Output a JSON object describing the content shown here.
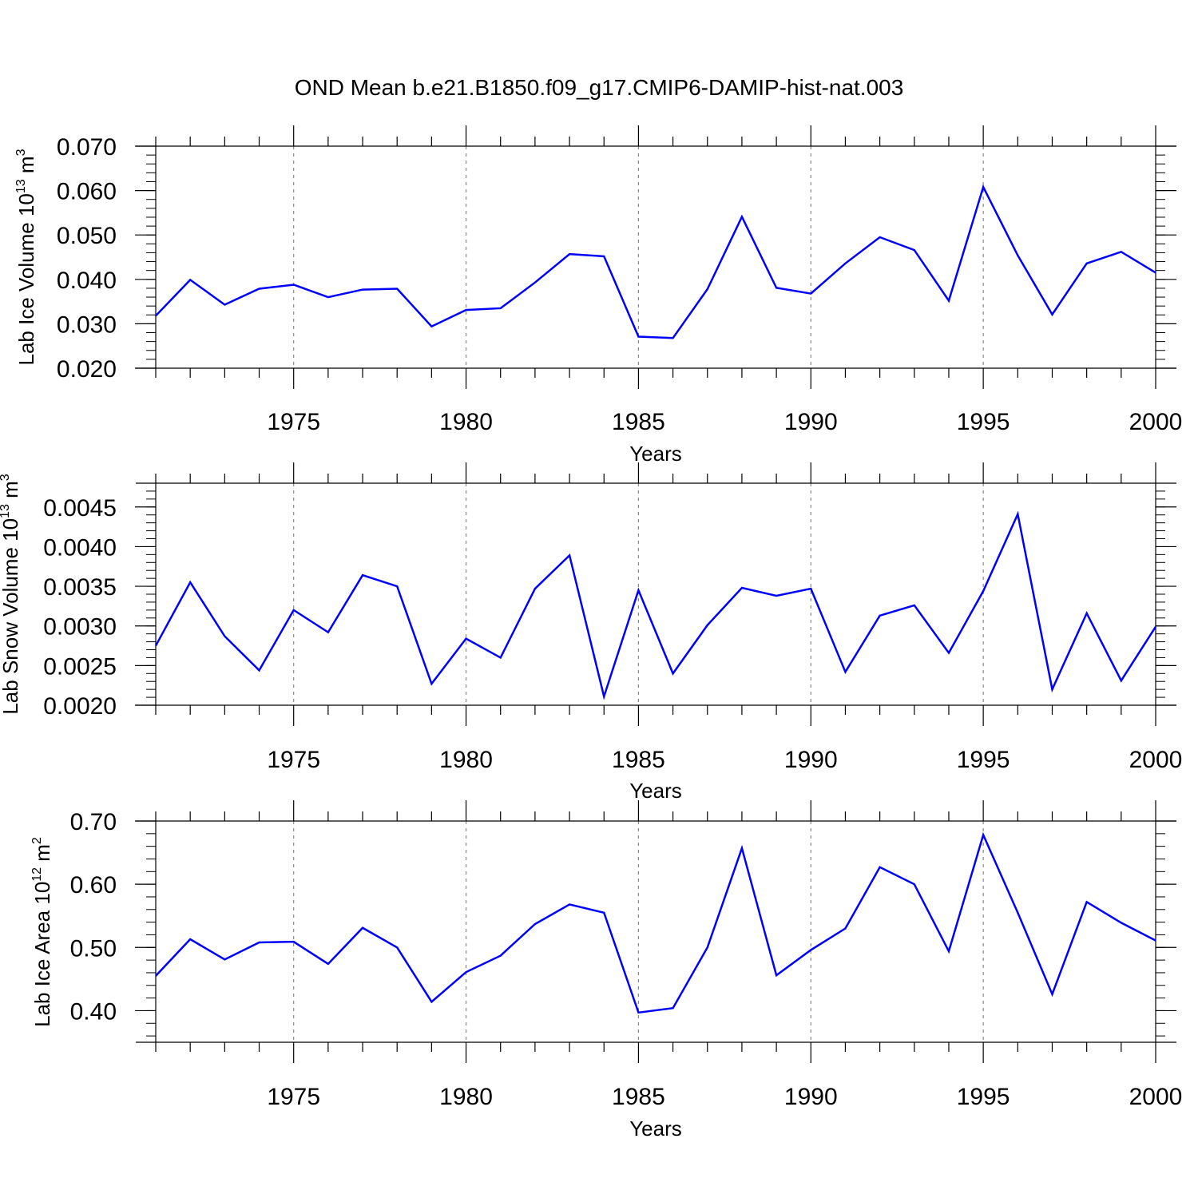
{
  "title": "OND Mean b.e21.B1850.f09_g17.CMIP6-DAMIP-hist-nat.003",
  "colors": {
    "series": "#0000ff",
    "axis": "#000000",
    "grid": "#888888"
  },
  "chart_data": [
    {
      "type": "line",
      "ylabel": "Lab Ice Volume 10",
      "ylabel_exp": "13",
      "ylabel_unit": " m",
      "ylabel_unit_exp": "3",
      "xlabel": "Years",
      "xlim": [
        1971,
        2000
      ],
      "ylim": [
        0.02,
        0.07
      ],
      "yticks": [
        "0.020",
        "0.030",
        "0.040",
        "0.050",
        "0.060",
        "0.070"
      ],
      "ytick_values": [
        0.02,
        0.03,
        0.04,
        0.05,
        0.06,
        0.07
      ],
      "xticks": [
        "1975",
        "1980",
        "1985",
        "1990",
        "1995",
        "2000"
      ],
      "xtick_values": [
        1975,
        1980,
        1985,
        1990,
        1995,
        2000
      ],
      "grid": "vertical dashed at major x ticks",
      "x": [
        1971,
        1972,
        1973,
        1974,
        1975,
        1976,
        1977,
        1978,
        1979,
        1980,
        1981,
        1982,
        1983,
        1984,
        1985,
        1986,
        1987,
        1988,
        1989,
        1990,
        1991,
        1992,
        1993,
        1994,
        1995,
        1996,
        1997,
        1998,
        1999,
        2000
      ],
      "series": [
        {
          "values": [
            0.0318,
            0.0399,
            0.0343,
            0.0379,
            0.0388,
            0.036,
            0.0377,
            0.0379,
            0.0294,
            0.0331,
            0.0335,
            0.0393,
            0.0457,
            0.0452,
            0.0271,
            0.0268,
            0.0378,
            0.0541,
            0.0381,
            0.0368,
            0.0436,
            0.0495,
            0.0466,
            0.0352,
            0.0608,
            0.0454,
            0.0321,
            0.0436,
            0.0462,
            0.0415
          ]
        }
      ]
    },
    {
      "type": "line",
      "ylabel": "Lab Snow Volume 10",
      "ylabel_exp": "13",
      "ylabel_unit": " m",
      "ylabel_unit_exp": "3",
      "xlabel": "Years",
      "xlim": [
        1971,
        2000
      ],
      "ylim": [
        0.002,
        0.0048
      ],
      "yticks": [
        "0.0020",
        "0.0025",
        "0.0030",
        "0.0035",
        "0.0040",
        "0.0045"
      ],
      "ytick_values": [
        0.002,
        0.0025,
        0.003,
        0.0035,
        0.004,
        0.0045
      ],
      "xticks": [
        "1975",
        "1980",
        "1985",
        "1990",
        "1995",
        "2000"
      ],
      "xtick_values": [
        1975,
        1980,
        1985,
        1990,
        1995,
        2000
      ],
      "grid": "vertical dashed at major x ticks",
      "x": [
        1971,
        1972,
        1973,
        1974,
        1975,
        1976,
        1977,
        1978,
        1979,
        1980,
        1981,
        1982,
        1983,
        1984,
        1985,
        1986,
        1987,
        1988,
        1989,
        1990,
        1991,
        1992,
        1993,
        1994,
        1995,
        1996,
        1997,
        1998,
        1999,
        2000
      ],
      "series": [
        {
          "values": [
            0.00275,
            0.00355,
            0.00287,
            0.00244,
            0.0032,
            0.00292,
            0.00364,
            0.0035,
            0.00227,
            0.00284,
            0.0026,
            0.00347,
            0.00389,
            0.00211,
            0.00345,
            0.0024,
            0.00301,
            0.00348,
            0.00338,
            0.00347,
            0.00242,
            0.00313,
            0.00326,
            0.00266,
            0.00344,
            0.00441,
            0.0022,
            0.00316,
            0.00231,
            0.00299
          ]
        }
      ]
    },
    {
      "type": "line",
      "ylabel": "Lab Ice Area 10",
      "ylabel_exp": "12",
      "ylabel_unit": " m",
      "ylabel_unit_exp": "2",
      "xlabel": "Years",
      "xlim": [
        1971,
        2000
      ],
      "ylim": [
        0.35,
        0.7
      ],
      "yticks": [
        "0.40",
        "0.50",
        "0.60",
        "0.70"
      ],
      "ytick_values": [
        0.4,
        0.5,
        0.6,
        0.7
      ],
      "xticks": [
        "1975",
        "1980",
        "1985",
        "1990",
        "1995",
        "2000"
      ],
      "xtick_values": [
        1975,
        1980,
        1985,
        1990,
        1995,
        2000
      ],
      "grid": "vertical dashed at major x ticks",
      "x": [
        1971,
        1972,
        1973,
        1974,
        1975,
        1976,
        1977,
        1978,
        1979,
        1980,
        1981,
        1982,
        1983,
        1984,
        1985,
        1986,
        1987,
        1988,
        1989,
        1990,
        1991,
        1992,
        1993,
        1994,
        1995,
        1996,
        1997,
        1998,
        1999,
        2000
      ],
      "series": [
        {
          "values": [
            0.455,
            0.513,
            0.481,
            0.508,
            0.509,
            0.474,
            0.531,
            0.5,
            0.414,
            0.461,
            0.487,
            0.537,
            0.568,
            0.555,
            0.397,
            0.404,
            0.5,
            0.657,
            0.456,
            0.496,
            0.53,
            0.627,
            0.6,
            0.494,
            0.678,
            0.555,
            0.426,
            0.572,
            0.539,
            0.511
          ]
        }
      ]
    }
  ]
}
